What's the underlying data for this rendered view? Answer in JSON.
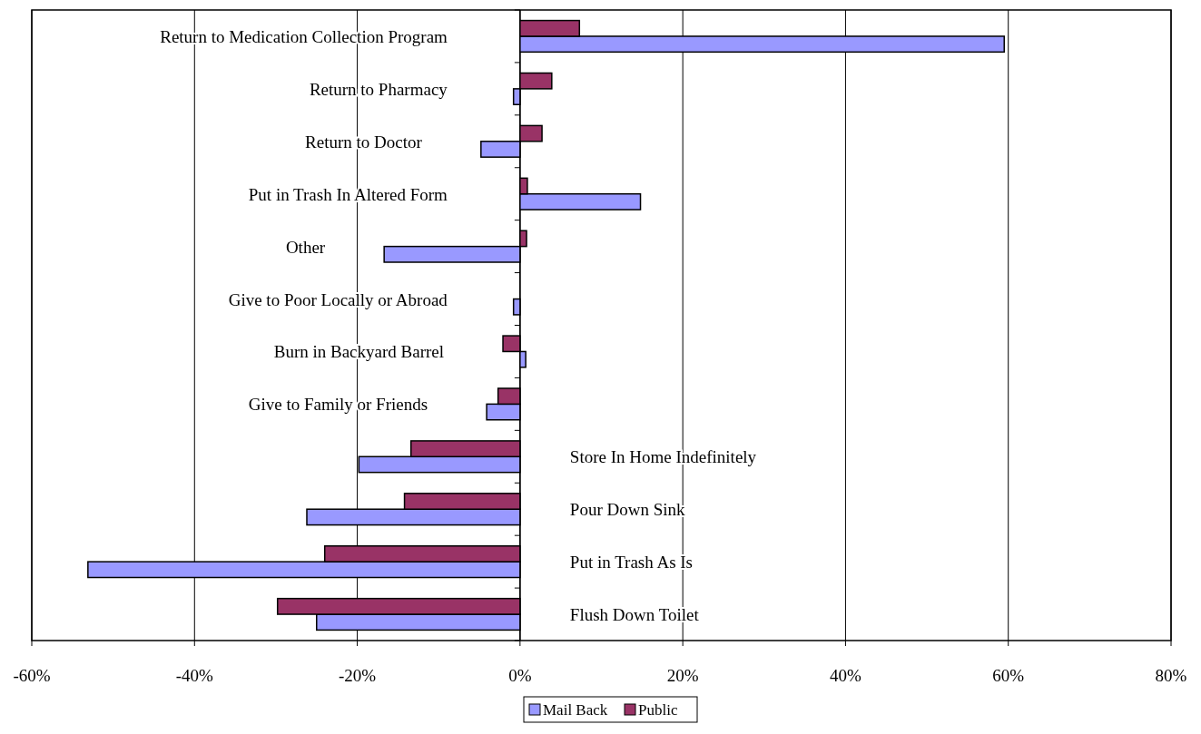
{
  "chart_data": {
    "type": "bar",
    "orientation": "horizontal",
    "categories": [
      "Return to Medication Collection Program",
      "Return to Pharmacy",
      "Return to Doctor",
      "Put in Trash In Altered Form",
      "Other",
      "Give to Poor Locally or Abroad",
      "Burn in Backyard Barrel",
      "Give to Family or Friends",
      "Store In Home Indefinitely",
      "Pour Down Sink",
      "Put in Trash As Is",
      "Flush Down Toilet"
    ],
    "series": [
      {
        "name": "Mail Back",
        "color": "#9999ff",
        "values": [
          59.5,
          -0.8,
          -4.8,
          14.8,
          -16.7,
          -0.8,
          0.7,
          -4.1,
          -19.8,
          -26.2,
          -53.1,
          -25.0
        ]
      },
      {
        "name": "Public",
        "color": "#993366",
        "values": [
          7.3,
          3.9,
          2.7,
          0.9,
          0.8,
          0,
          -2.1,
          -2.7,
          -13.4,
          -14.2,
          -24.0,
          -29.8
        ]
      }
    ],
    "xlim": [
      -60,
      80
    ],
    "xticks": [
      {
        "value": -60,
        "label": "-60%"
      },
      {
        "value": -40,
        "label": "-40%"
      },
      {
        "value": -20,
        "label": "-20%"
      },
      {
        "value": 0,
        "label": "0%"
      },
      {
        "value": 20,
        "label": "20%"
      },
      {
        "value": 40,
        "label": "40%"
      },
      {
        "value": 60,
        "label": "60%"
      },
      {
        "value": 80,
        "label": "80%"
      }
    ],
    "grid": "x",
    "legend": "bottom"
  }
}
